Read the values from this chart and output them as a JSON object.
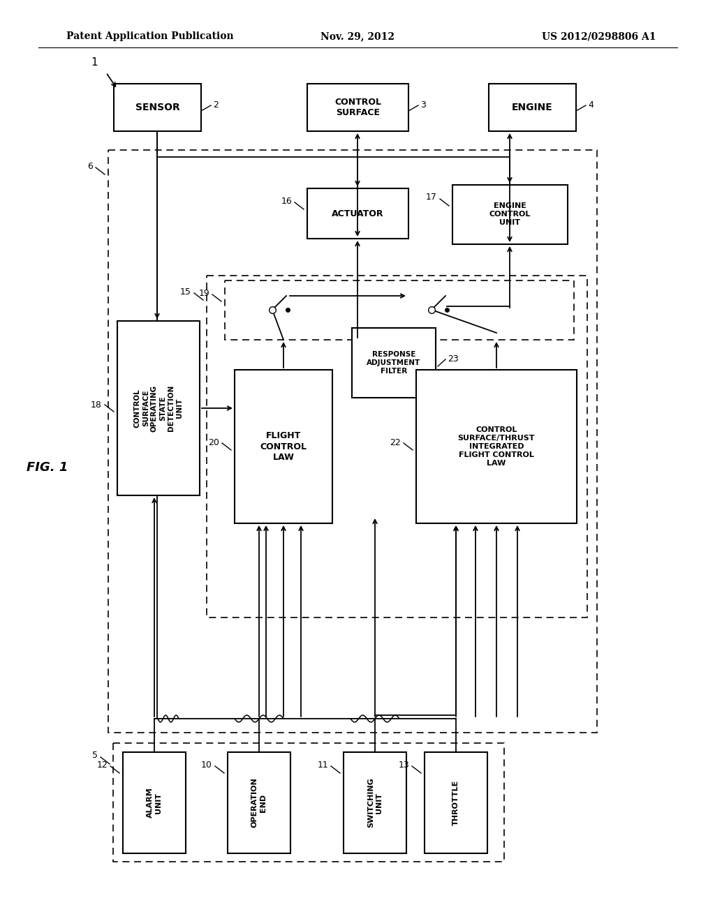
{
  "header_left": "Patent Application Publication",
  "header_mid": "Nov. 29, 2012",
  "header_right": "US 2012/0298806 A1",
  "fig_label": "FIG. 1",
  "bg_color": "#ffffff"
}
